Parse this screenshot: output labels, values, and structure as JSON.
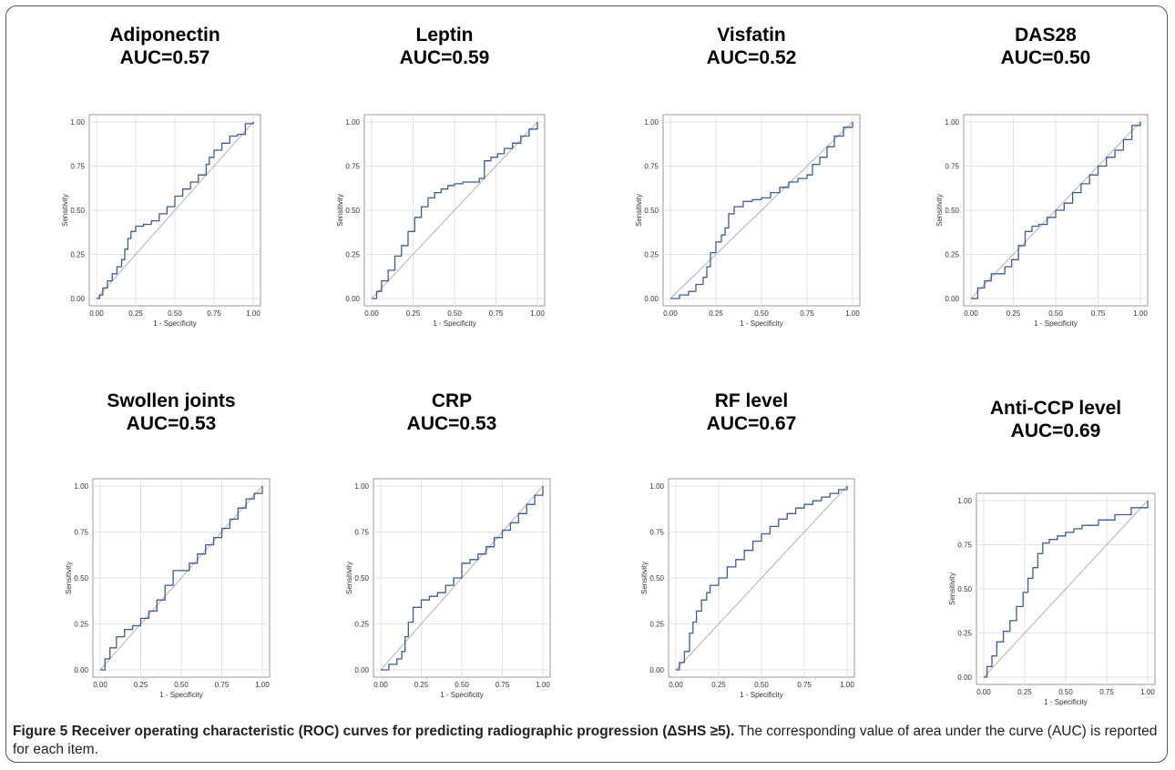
{
  "caption": {
    "lead": "Figure 5 Receiver operating characteristic (ROC) curves for predicting radiographic progression (ΔSHS ≥5).",
    "rest": " The corresponding value of area under the curve (AUC) is reported for each item."
  },
  "colors": {
    "curve": "#3e5a9a",
    "diagonal": "#b8b8b8",
    "grid": "#e2e2e2",
    "frame": "#9a9a9a"
  },
  "chart_data": [
    {
      "type": "line",
      "title": "Adiponectin",
      "subtitle": "AUC=0.57",
      "xlabel": "1 - Specificity",
      "ylabel": "Sensitivity",
      "xlim": [
        0,
        1
      ],
      "ylim": [
        0,
        1
      ],
      "xticks": [
        "0.00",
        "0.25",
        "0.50",
        "0.75",
        "1.00"
      ],
      "yticks": [
        "0.00",
        "0.25",
        "0.50",
        "0.75",
        "1.00"
      ],
      "grid": true,
      "series": [
        {
          "x": [
            0,
            0.02,
            0.04,
            0.07,
            0.1,
            0.13,
            0.16,
            0.18,
            0.2,
            0.22,
            0.25,
            0.3,
            0.35,
            0.4,
            0.45,
            0.5,
            0.55,
            0.6,
            0.65,
            0.7,
            0.72,
            0.75,
            0.8,
            0.85,
            0.9,
            0.95,
            1
          ],
          "y": [
            0,
            0.02,
            0.06,
            0.1,
            0.14,
            0.18,
            0.22,
            0.28,
            0.34,
            0.38,
            0.41,
            0.42,
            0.44,
            0.48,
            0.52,
            0.58,
            0.62,
            0.66,
            0.7,
            0.76,
            0.8,
            0.84,
            0.88,
            0.92,
            0.93,
            0.99,
            1
          ]
        },
        {
          "x": [
            0,
            1
          ],
          "y": [
            0,
            1
          ]
        }
      ]
    },
    {
      "type": "line",
      "title": "Leptin",
      "subtitle": "AUC=0.59",
      "xlabel": "1 - Specificity",
      "ylabel": "Sensitivity",
      "xlim": [
        0,
        1
      ],
      "ylim": [
        0,
        1
      ],
      "xticks": [
        "0.00",
        "0.25",
        "0.50",
        "0.75",
        "1.00"
      ],
      "yticks": [
        "0.00",
        "0.25",
        "0.50",
        "0.75",
        "1.00"
      ],
      "grid": true,
      "series": [
        {
          "x": [
            0,
            0.03,
            0.06,
            0.1,
            0.14,
            0.18,
            0.22,
            0.26,
            0.3,
            0.34,
            0.38,
            0.42,
            0.46,
            0.5,
            0.55,
            0.6,
            0.65,
            0.68,
            0.72,
            0.76,
            0.8,
            0.85,
            0.9,
            0.95,
            1
          ],
          "y": [
            0,
            0.04,
            0.1,
            0.16,
            0.24,
            0.3,
            0.38,
            0.46,
            0.52,
            0.57,
            0.6,
            0.62,
            0.64,
            0.65,
            0.66,
            0.66,
            0.68,
            0.78,
            0.8,
            0.82,
            0.85,
            0.88,
            0.92,
            0.96,
            1
          ]
        },
        {
          "x": [
            0,
            1
          ],
          "y": [
            0,
            1
          ]
        }
      ]
    },
    {
      "type": "line",
      "title": "Visfatin",
      "subtitle": "AUC=0.52",
      "xlabel": "1 - Specificity",
      "ylabel": "Sensitivity",
      "xlim": [
        0,
        1
      ],
      "ylim": [
        0,
        1
      ],
      "xticks": [
        "0.00",
        "0.25",
        "0.50",
        "0.75",
        "1.00"
      ],
      "yticks": [
        "0.00",
        "0.25",
        "0.50",
        "0.75",
        "1.00"
      ],
      "grid": true,
      "series": [
        {
          "x": [
            0,
            0.05,
            0.1,
            0.14,
            0.18,
            0.2,
            0.22,
            0.25,
            0.28,
            0.3,
            0.32,
            0.35,
            0.4,
            0.45,
            0.5,
            0.55,
            0.6,
            0.65,
            0.7,
            0.75,
            0.78,
            0.82,
            0.86,
            0.9,
            0.95,
            1
          ],
          "y": [
            0,
            0.02,
            0.04,
            0.08,
            0.12,
            0.18,
            0.26,
            0.32,
            0.36,
            0.4,
            0.48,
            0.52,
            0.55,
            0.56,
            0.57,
            0.6,
            0.63,
            0.66,
            0.68,
            0.7,
            0.76,
            0.8,
            0.86,
            0.92,
            0.97,
            1
          ]
        },
        {
          "x": [
            0,
            1
          ],
          "y": [
            0,
            1
          ]
        }
      ]
    },
    {
      "type": "line",
      "title": "DAS28",
      "subtitle": "AUC=0.50",
      "xlabel": "1 - Specificity",
      "ylabel": "Sensitivity",
      "xlim": [
        0,
        1
      ],
      "ylim": [
        0,
        1
      ],
      "xticks": [
        "0.00",
        "0.25",
        "0.50",
        "0.75",
        "1.00"
      ],
      "yticks": [
        "0.00",
        "0.25",
        "0.50",
        "0.75",
        "1.00"
      ],
      "grid": true,
      "series": [
        {
          "x": [
            0,
            0.04,
            0.08,
            0.12,
            0.16,
            0.2,
            0.24,
            0.28,
            0.32,
            0.36,
            0.4,
            0.45,
            0.5,
            0.55,
            0.6,
            0.65,
            0.7,
            0.75,
            0.8,
            0.85,
            0.9,
            0.95,
            1
          ],
          "y": [
            0,
            0.06,
            0.1,
            0.14,
            0.14,
            0.18,
            0.22,
            0.3,
            0.38,
            0.41,
            0.42,
            0.46,
            0.5,
            0.54,
            0.6,
            0.65,
            0.7,
            0.75,
            0.8,
            0.84,
            0.9,
            0.98,
            1
          ]
        },
        {
          "x": [
            0,
            1
          ],
          "y": [
            0,
            1
          ]
        }
      ]
    },
    {
      "type": "line",
      "title": "Swollen joints",
      "subtitle": "AUC=0.53",
      "xlabel": "1 - Specificity",
      "ylabel": "Sensitivity",
      "xlim": [
        0,
        1
      ],
      "ylim": [
        0,
        1
      ],
      "xticks": [
        "0.00",
        "0.25",
        "0.50",
        "0.75",
        "1.00"
      ],
      "yticks": [
        "0.00",
        "0.25",
        "0.50",
        "0.75",
        "1.00"
      ],
      "grid": true,
      "series": [
        {
          "x": [
            0,
            0.03,
            0.06,
            0.1,
            0.15,
            0.2,
            0.25,
            0.3,
            0.35,
            0.4,
            0.45,
            0.5,
            0.55,
            0.6,
            0.65,
            0.7,
            0.75,
            0.8,
            0.85,
            0.9,
            0.95,
            1
          ],
          "y": [
            0,
            0.06,
            0.12,
            0.18,
            0.22,
            0.24,
            0.28,
            0.32,
            0.38,
            0.46,
            0.54,
            0.54,
            0.58,
            0.63,
            0.68,
            0.72,
            0.77,
            0.82,
            0.88,
            0.93,
            0.96,
            1
          ]
        },
        {
          "x": [
            0,
            1
          ],
          "y": [
            0,
            1
          ]
        }
      ]
    },
    {
      "type": "line",
      "title": "CRP",
      "subtitle": "AUC=0.53",
      "xlabel": "1 - Specificity",
      "ylabel": "Sensitivity",
      "xlim": [
        0,
        1
      ],
      "ylim": [
        0,
        1
      ],
      "xticks": [
        "0.00",
        "0.25",
        "0.50",
        "0.75",
        "1.00"
      ],
      "yticks": [
        "0.00",
        "0.25",
        "0.50",
        "0.75",
        "1.00"
      ],
      "grid": true,
      "series": [
        {
          "x": [
            0,
            0.05,
            0.1,
            0.13,
            0.15,
            0.17,
            0.2,
            0.25,
            0.3,
            0.35,
            0.4,
            0.45,
            0.5,
            0.55,
            0.6,
            0.65,
            0.7,
            0.75,
            0.8,
            0.85,
            0.9,
            0.95,
            1
          ],
          "y": [
            0,
            0.03,
            0.06,
            0.1,
            0.18,
            0.26,
            0.34,
            0.38,
            0.4,
            0.42,
            0.46,
            0.5,
            0.58,
            0.6,
            0.63,
            0.67,
            0.72,
            0.76,
            0.8,
            0.85,
            0.9,
            0.95,
            1
          ]
        },
        {
          "x": [
            0,
            1
          ],
          "y": [
            0,
            1
          ]
        }
      ]
    },
    {
      "type": "line",
      "title": "RF level",
      "subtitle": "AUC=0.67",
      "xlabel": "1 - Specificity",
      "ylabel": "Sensitivity",
      "xlim": [
        0,
        1
      ],
      "ylim": [
        0,
        1
      ],
      "xticks": [
        "0.00",
        "0.25",
        "0.50",
        "0.75",
        "1.00"
      ],
      "yticks": [
        "0.00",
        "0.25",
        "0.50",
        "0.75",
        "1.00"
      ],
      "grid": true,
      "series": [
        {
          "x": [
            0,
            0.02,
            0.05,
            0.08,
            0.1,
            0.12,
            0.15,
            0.18,
            0.2,
            0.25,
            0.3,
            0.35,
            0.4,
            0.45,
            0.5,
            0.55,
            0.6,
            0.65,
            0.7,
            0.75,
            0.8,
            0.85,
            0.9,
            0.95,
            1
          ],
          "y": [
            0,
            0.04,
            0.1,
            0.2,
            0.26,
            0.32,
            0.38,
            0.42,
            0.46,
            0.5,
            0.56,
            0.6,
            0.65,
            0.7,
            0.74,
            0.78,
            0.82,
            0.85,
            0.88,
            0.9,
            0.92,
            0.94,
            0.96,
            0.98,
            1
          ]
        },
        {
          "x": [
            0,
            1
          ],
          "y": [
            0,
            1
          ]
        }
      ]
    },
    {
      "type": "line",
      "title": "Anti-CCP level",
      "subtitle": "AUC=0.69",
      "xlabel": "1 - Specificity",
      "ylabel": "Sensitivity",
      "xlim": [
        0,
        1
      ],
      "ylim": [
        0,
        1
      ],
      "xticks": [
        "0.00",
        "0.25",
        "0.50",
        "0.75",
        "1.00"
      ],
      "yticks": [
        "0.00",
        "0.25",
        "0.50",
        "0.75",
        "1.00"
      ],
      "grid": true,
      "series": [
        {
          "x": [
            0,
            0.02,
            0.05,
            0.08,
            0.12,
            0.16,
            0.2,
            0.24,
            0.27,
            0.3,
            0.33,
            0.36,
            0.4,
            0.45,
            0.5,
            0.55,
            0.6,
            0.7,
            0.8,
            0.9,
            1
          ],
          "y": [
            0,
            0.06,
            0.12,
            0.2,
            0.26,
            0.32,
            0.4,
            0.48,
            0.56,
            0.62,
            0.7,
            0.76,
            0.78,
            0.8,
            0.82,
            0.84,
            0.86,
            0.89,
            0.92,
            0.96,
            1
          ]
        },
        {
          "x": [
            0,
            1
          ],
          "y": [
            0,
            1
          ]
        }
      ]
    }
  ]
}
